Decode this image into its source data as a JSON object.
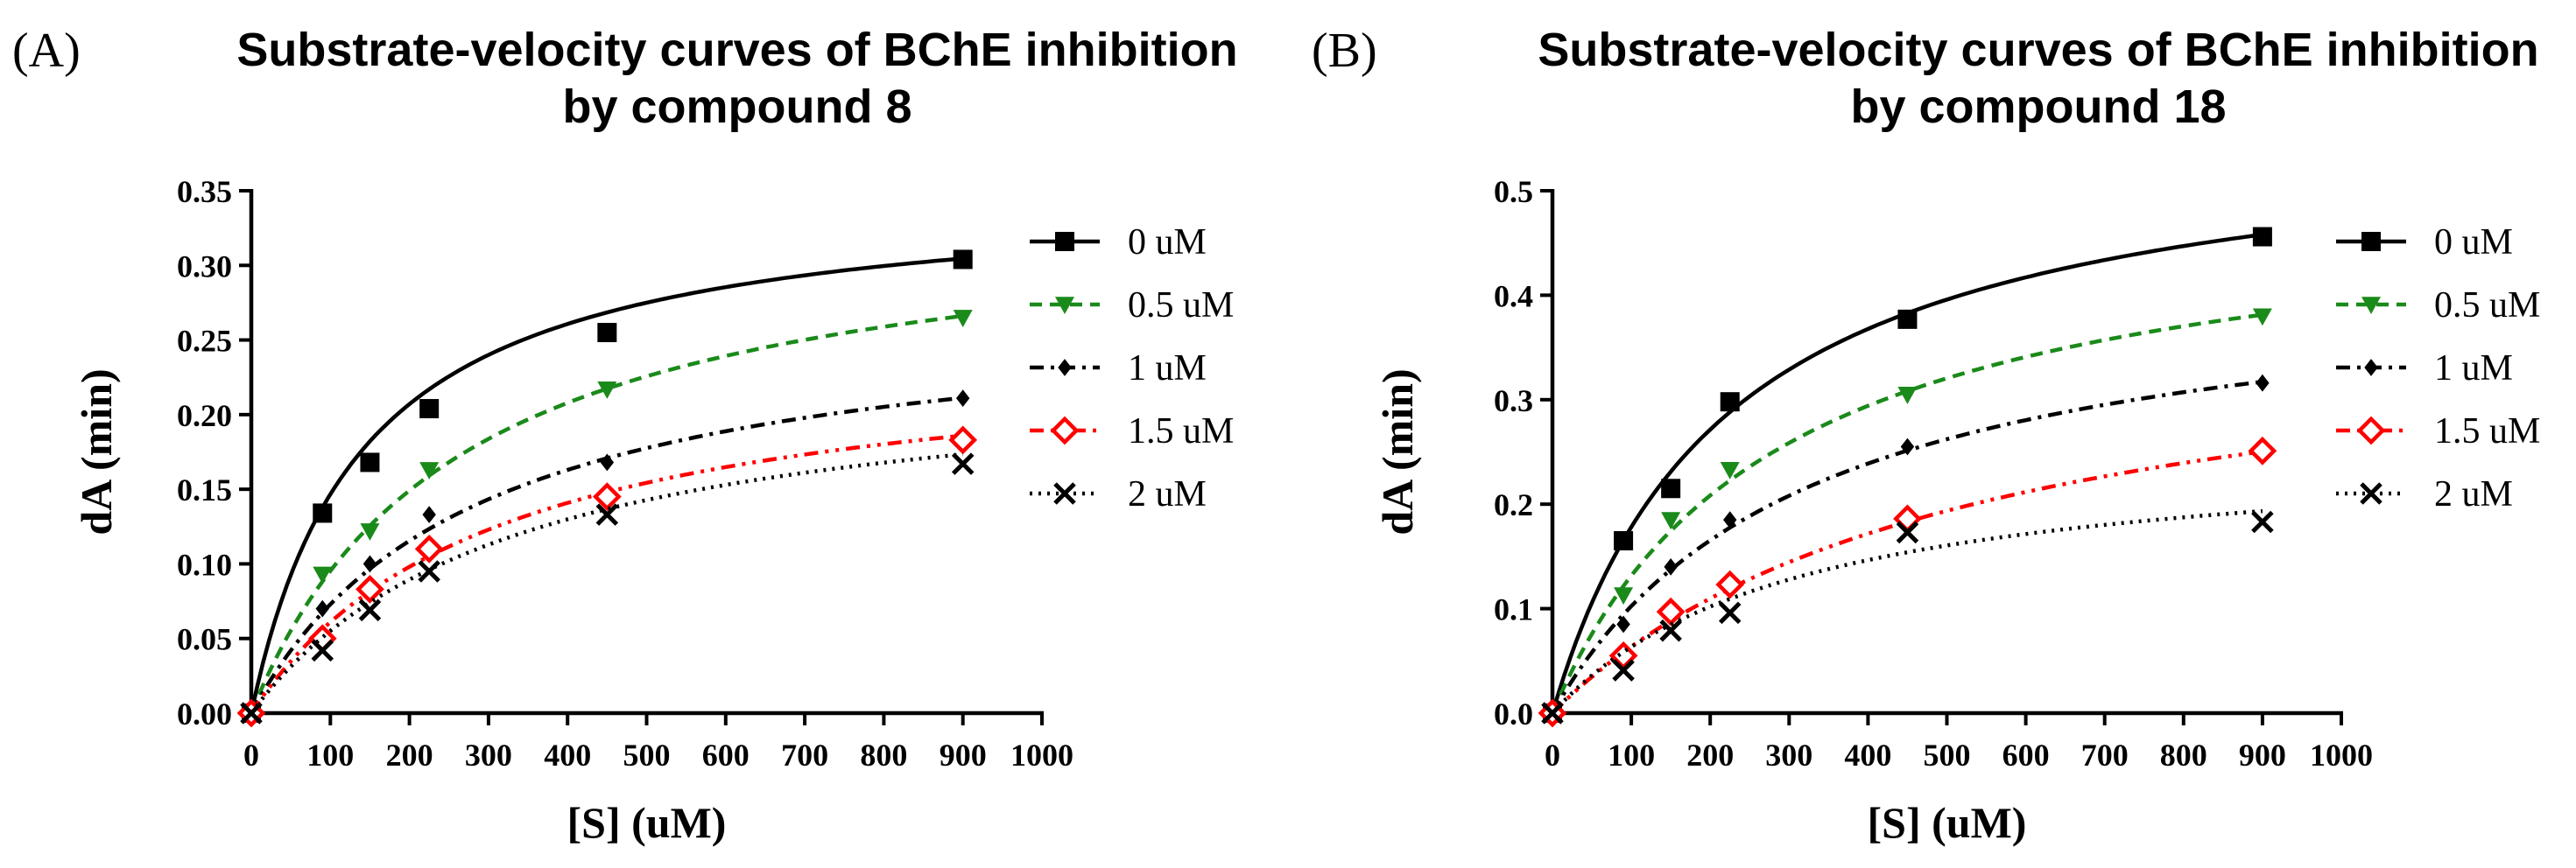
{
  "chart_data": [
    {
      "type": "line",
      "panel_label": "(A)",
      "title_lines": [
        "Substrate-velocity curves of  BChE inhibition",
        "by compound 8"
      ],
      "xlabel": "[S] (uM)",
      "ylabel": "dA (min)",
      "xlim": [
        0,
        1000
      ],
      "ylim": [
        0,
        0.35
      ],
      "x_ticks": [
        "0",
        "100",
        "200",
        "300",
        "400",
        "500",
        "600",
        "700",
        "800",
        "900",
        "1000"
      ],
      "y_ticks": [
        "0.00",
        "0.05",
        "0.10",
        "0.15",
        "0.20",
        "0.25",
        "0.30",
        "0.35"
      ],
      "legend_position": "right",
      "x": [
        0,
        90,
        150,
        225,
        450,
        900
      ],
      "series": [
        {
          "name": "0 uM",
          "values": [
            0,
            0.134,
            0.168,
            0.204,
            0.255,
            0.304
          ],
          "vmax": 0.352,
          "km": 140,
          "color": "#000000",
          "dash": "",
          "marker": "square"
        },
        {
          "name": "0.5 uM",
          "values": [
            0,
            0.093,
            0.122,
            0.163,
            0.217,
            0.265
          ],
          "vmax": 0.343,
          "km": 260,
          "color": "#1a8a1a",
          "dash": "14,9",
          "marker": "triangle-down"
        },
        {
          "name": "1 uM",
          "values": [
            0,
            0.07,
            0.1,
            0.133,
            0.168,
            0.211
          ],
          "vmax": 0.277,
          "km": 280,
          "color": "#000000",
          "dash": "16,8,4,8",
          "marker": "diamond"
        },
        {
          "name": "1.5 uM",
          "values": [
            0,
            0.05,
            0.083,
            0.11,
            0.145,
            0.183
          ],
          "vmax": 0.25,
          "km": 310,
          "color": "#ff0000",
          "dash": "16,8,4,8,4,8",
          "marker": "open-diamond"
        },
        {
          "name": "2 uM",
          "values": [
            0,
            0.042,
            0.069,
            0.095,
            0.133,
            0.167
          ],
          "vmax": 0.237,
          "km": 330,
          "color": "#000000",
          "dash": "3,7",
          "marker": "cross"
        }
      ]
    },
    {
      "type": "line",
      "panel_label": "(B)",
      "title_lines": [
        "Substrate-velocity curves of  BChE inhibition",
        "by compound 18"
      ],
      "xlabel": "[S] (uM)",
      "ylabel": "dA (min)",
      "xlim": [
        0,
        1000
      ],
      "ylim": [
        0,
        0.5
      ],
      "x_ticks": [
        "0",
        "100",
        "200",
        "300",
        "400",
        "500",
        "600",
        "700",
        "800",
        "900",
        "1000"
      ],
      "y_ticks": [
        "0.0",
        "0.1",
        "0.2",
        "0.3",
        "0.4",
        "0.5"
      ],
      "legend_position": "right",
      "x": [
        0,
        90,
        150,
        225,
        450,
        900
      ],
      "series": [
        {
          "name": "0 uM",
          "values": [
            0,
            0.165,
            0.215,
            0.298,
            0.377,
            0.456
          ],
          "vmax": 0.57,
          "km": 220,
          "color": "#000000",
          "dash": "",
          "marker": "square"
        },
        {
          "name": "0.5 uM",
          "values": [
            0,
            0.113,
            0.185,
            0.233,
            0.305,
            0.38
          ],
          "vmax": 0.5,
          "km": 280,
          "color": "#1a8a1a",
          "dash": "14,9",
          "marker": "triangle-down"
        },
        {
          "name": "1 uM",
          "values": [
            0,
            0.085,
            0.14,
            0.185,
            0.255,
            0.316
          ],
          "vmax": 0.43,
          "km": 320,
          "color": "#000000",
          "dash": "16,8,4,8",
          "marker": "diamond"
        },
        {
          "name": "1.5 uM",
          "values": [
            0,
            0.055,
            0.097,
            0.123,
            0.186,
            0.251
          ],
          "vmax": 0.395,
          "km": 520,
          "color": "#ff0000",
          "dash": "16,8,4,8,4,8",
          "marker": "open-diamond"
        },
        {
          "name": "2 uM",
          "values": [
            0,
            0.041,
            0.079,
            0.096,
            0.173,
            0.183
          ],
          "vmax": 0.26,
          "km": 310,
          "color": "#000000",
          "dash": "3,7",
          "marker": "cross"
        }
      ]
    }
  ]
}
